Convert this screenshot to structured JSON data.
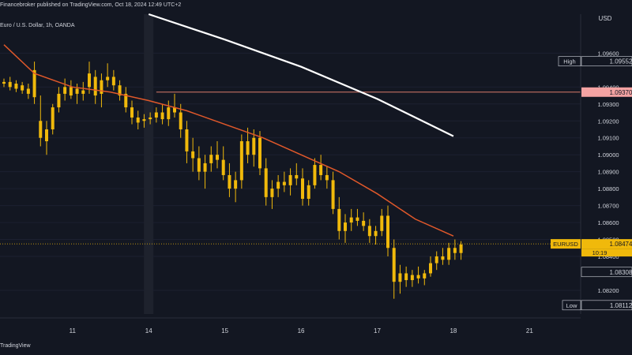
{
  "header": {
    "published": "Financebroker published on TradingView.com, Oct 18, 2024 12:49 UTC+2"
  },
  "symbol_legend": "Euro / U.S. Dollar, 1h, OANDA",
  "footer": {
    "brand": "TradingView"
  },
  "colors": {
    "background": "#131722",
    "candle": "#f0b90b",
    "ma_fast": "#e0582a",
    "ma_slow": "#ffffff",
    "hline": "#d97a6b",
    "price_line": "#f0b90b",
    "axis_text": "#d1d4dc"
  },
  "chart_data": {
    "type": "candlestick",
    "currency": "USD",
    "ylim": [
      1.0806,
      1.0983
    ],
    "y_ticks": [
      "1.09600",
      "1.09400",
      "1.09300",
      "1.09200",
      "1.09100",
      "1.09000",
      "1.08900",
      "1.08800",
      "1.08700",
      "1.08600",
      "1.08500",
      "1.08400",
      "1.08200"
    ],
    "y_tick_values": [
      1.096,
      1.094,
      1.093,
      1.092,
      1.091,
      1.09,
      1.089,
      1.088,
      1.087,
      1.086,
      1.085,
      1.084,
      1.082
    ],
    "x_ticks": [
      "11",
      "14",
      "15",
      "16",
      "17",
      "18",
      "21"
    ],
    "x_tick_positions": [
      1.5,
      2.5,
      3.5,
      4.5,
      5.5,
      6.5,
      7.5
    ],
    "x_range": [
      0.6,
      7.6
    ],
    "session_break_x": 2.5,
    "price_labels": [
      {
        "label": "High",
        "value": 1.09552,
        "text": "1.09552",
        "style": "high"
      },
      {
        "label": "",
        "value": 1.0937,
        "text": "1.09370",
        "style": "hline"
      },
      {
        "label": "EURUSD",
        "value": 1.08474,
        "text": "1.08474",
        "countdown": "10:19",
        "style": "current"
      },
      {
        "label": "",
        "value": 1.08308,
        "text": "1.08308",
        "style": "plain"
      },
      {
        "label": "Low",
        "value": 1.08112,
        "text": "1.08112",
        "style": "low"
      }
    ],
    "horizontal_line": 1.0937,
    "current_price": 1.08474,
    "ma_slow": {
      "x": [
        2.5,
        3.5,
        4.5,
        5.5,
        6.5
      ],
      "y": [
        1.0983,
        1.0968,
        1.0952,
        1.0933,
        1.0911
      ]
    },
    "ma_fast": {
      "x": [
        0.6,
        1.0,
        1.5,
        2.0,
        2.5,
        3.0,
        3.5,
        4.0,
        4.5,
        5.0,
        5.5,
        6.0,
        6.5
      ],
      "y": [
        1.0965,
        1.0948,
        1.094,
        1.0937,
        1.0932,
        1.0926,
        1.0918,
        1.091,
        1.09,
        1.089,
        1.0877,
        1.0862,
        1.0852
      ]
    },
    "candles_ohlc": [
      [
        0.6,
        1.0943,
        1.0945,
        1.094,
        1.0942
      ],
      [
        0.68,
        1.0943,
        1.0946,
        1.0938,
        1.094
      ],
      [
        0.76,
        1.0942,
        1.0944,
        1.0937,
        1.0939
      ],
      [
        0.84,
        1.0941,
        1.0943,
        1.0936,
        1.0938
      ],
      [
        0.92,
        1.0939,
        1.0942,
        1.0933,
        1.0936
      ],
      [
        1.0,
        1.095,
        1.0955,
        1.093,
        1.0934
      ],
      [
        1.08,
        1.092,
        1.0935,
        1.0905,
        1.091
      ],
      [
        1.16,
        1.0908,
        1.092,
        1.09,
        1.0915
      ],
      [
        1.24,
        1.0915,
        1.093,
        1.0912,
        1.0928
      ],
      [
        1.32,
        1.0928,
        1.094,
        1.0925,
        1.0936
      ],
      [
        1.4,
        1.0936,
        1.0945,
        1.0932,
        1.094
      ],
      [
        1.48,
        1.094,
        1.0944,
        1.0933,
        1.0935
      ],
      [
        1.56,
        1.0936,
        1.0942,
        1.093,
        1.0939
      ],
      [
        1.64,
        1.0938,
        1.0943,
        1.0932,
        1.0936
      ],
      [
        1.72,
        1.094,
        1.0955,
        1.0936,
        1.0948
      ],
      [
        1.8,
        1.0946,
        1.095,
        1.093,
        1.0935
      ],
      [
        1.88,
        1.0936,
        1.0948,
        1.0928,
        1.0944
      ],
      [
        1.96,
        1.0944,
        1.0954,
        1.094,
        1.0946
      ],
      [
        2.04,
        1.0946,
        1.095,
        1.0938,
        1.0941
      ],
      [
        2.12,
        1.0941,
        1.0944,
        1.0932,
        1.0935
      ],
      [
        2.2,
        1.0936,
        1.094,
        1.0925,
        1.0928
      ],
      [
        2.28,
        1.0928,
        1.0932,
        1.0918,
        1.0922
      ],
      [
        2.36,
        1.0922,
        1.0926,
        1.0915,
        1.0919
      ],
      [
        2.44,
        1.092,
        1.0924,
        1.0916,
        1.0921
      ],
      [
        2.52,
        1.0921,
        1.0925,
        1.0918,
        1.0922
      ],
      [
        2.6,
        1.0922,
        1.0928,
        1.0919,
        1.0925
      ],
      [
        2.68,
        1.0925,
        1.093,
        1.0918,
        1.0921
      ],
      [
        2.76,
        1.0921,
        1.0932,
        1.0917,
        1.0928
      ],
      [
        2.84,
        1.0928,
        1.0936,
        1.0922,
        1.0925
      ],
      [
        2.92,
        1.0925,
        1.093,
        1.091,
        1.0915
      ],
      [
        3.0,
        1.0915,
        1.092,
        1.0895,
        1.0902
      ],
      [
        3.08,
        1.0902,
        1.091,
        1.089,
        1.0898
      ],
      [
        3.16,
        1.0898,
        1.0905,
        1.0885,
        1.089
      ],
      [
        3.24,
        1.089,
        1.09,
        1.088,
        1.0895
      ],
      [
        3.32,
        1.0895,
        1.0905,
        1.089,
        1.09
      ],
      [
        3.4,
        1.09,
        1.0908,
        1.0892,
        1.0897
      ],
      [
        3.48,
        1.0897,
        1.0905,
        1.0885,
        1.0888
      ],
      [
        3.56,
        1.0888,
        1.0895,
        1.0875,
        1.088
      ],
      [
        3.64,
        1.088,
        1.089,
        1.0872,
        1.0885
      ],
      [
        3.72,
        1.0885,
        1.0912,
        1.088,
        1.0908
      ],
      [
        3.8,
        1.0908,
        1.0916,
        1.0895,
        1.09
      ],
      [
        3.88,
        1.09,
        1.0915,
        1.0893,
        1.091
      ],
      [
        3.96,
        1.091,
        1.0914,
        1.0888,
        1.0892
      ],
      [
        4.04,
        1.0892,
        1.0898,
        1.087,
        1.0875
      ],
      [
        4.12,
        1.0875,
        1.0885,
        1.0868,
        1.088
      ],
      [
        4.2,
        1.088,
        1.0888,
        1.0875,
        1.0884
      ],
      [
        4.28,
        1.0884,
        1.089,
        1.0878,
        1.0882
      ],
      [
        4.36,
        1.0882,
        1.0892,
        1.0876,
        1.0888
      ],
      [
        4.44,
        1.0888,
        1.0895,
        1.0882,
        1.0886
      ],
      [
        4.52,
        1.0886,
        1.0892,
        1.087,
        1.0874
      ],
      [
        4.6,
        1.0874,
        1.0885,
        1.087,
        1.0882
      ],
      [
        4.68,
        1.0882,
        1.0898,
        1.088,
        1.0894
      ],
      [
        4.76,
        1.0894,
        1.09,
        1.0885,
        1.0888
      ],
      [
        4.84,
        1.0888,
        1.0893,
        1.088,
        1.0885
      ],
      [
        4.92,
        1.0885,
        1.089,
        1.0865,
        1.0868
      ],
      [
        5.0,
        1.0868,
        1.0875,
        1.085,
        1.0855
      ],
      [
        5.08,
        1.0855,
        1.0865,
        1.0848,
        1.086
      ],
      [
        5.16,
        1.086,
        1.0868,
        1.0855,
        1.0863
      ],
      [
        5.24,
        1.0863,
        1.0868,
        1.0858,
        1.0861
      ],
      [
        5.32,
        1.0861,
        1.0866,
        1.0855,
        1.0858
      ],
      [
        5.4,
        1.0858,
        1.0862,
        1.0848,
        1.0852
      ],
      [
        5.48,
        1.0852,
        1.0858,
        1.0847,
        1.0855
      ],
      [
        5.56,
        1.0855,
        1.0868,
        1.0852,
        1.0864
      ],
      [
        5.64,
        1.0864,
        1.087,
        1.084,
        1.0845
      ],
      [
        5.72,
        1.0845,
        1.085,
        1.0815,
        1.0825
      ],
      [
        5.8,
        1.0825,
        1.0835,
        1.0818,
        1.083
      ],
      [
        5.88,
        1.083,
        1.0834,
        1.0822,
        1.0826
      ],
      [
        5.96,
        1.0826,
        1.0832,
        1.0822,
        1.0829
      ],
      [
        6.04,
        1.0829,
        1.0834,
        1.0824,
        1.0827
      ],
      [
        6.12,
        1.0827,
        1.0832,
        1.0823,
        1.083
      ],
      [
        6.2,
        1.083,
        1.084,
        1.0828,
        1.0836
      ],
      [
        6.28,
        1.0836,
        1.0843,
        1.0832,
        1.084
      ],
      [
        6.36,
        1.084,
        1.0845,
        1.0835,
        1.0838
      ],
      [
        6.44,
        1.0838,
        1.0848,
        1.0835,
        1.0845
      ],
      [
        6.52,
        1.0845,
        1.085,
        1.0838,
        1.0842
      ],
      [
        6.6,
        1.0842,
        1.0849,
        1.0838,
        1.0847
      ]
    ]
  }
}
